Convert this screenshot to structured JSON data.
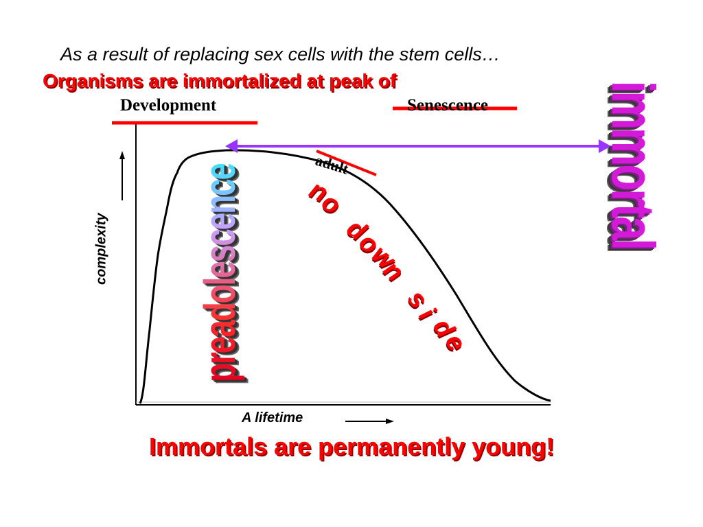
{
  "slide": {
    "intro": "As a result of replacing sex cells with the stem cells…",
    "headline": "Organisms are immortalized at peak of",
    "conclusion": "Immortals are permanently young!"
  },
  "diagram": {
    "label_development": "Development",
    "label_senescence": "Senescence",
    "label_adult": "adult",
    "y_axis_label": "complexity",
    "x_axis_label": "A lifetime",
    "word_preadolescence": "preadolescence",
    "word_immortal": "immortal",
    "word_no_down_side": "no down side"
  },
  "colors": {
    "accent_red": "#ff0000",
    "arrow_purple": "#9933ff",
    "immortal_magenta": "#d21ad8"
  }
}
